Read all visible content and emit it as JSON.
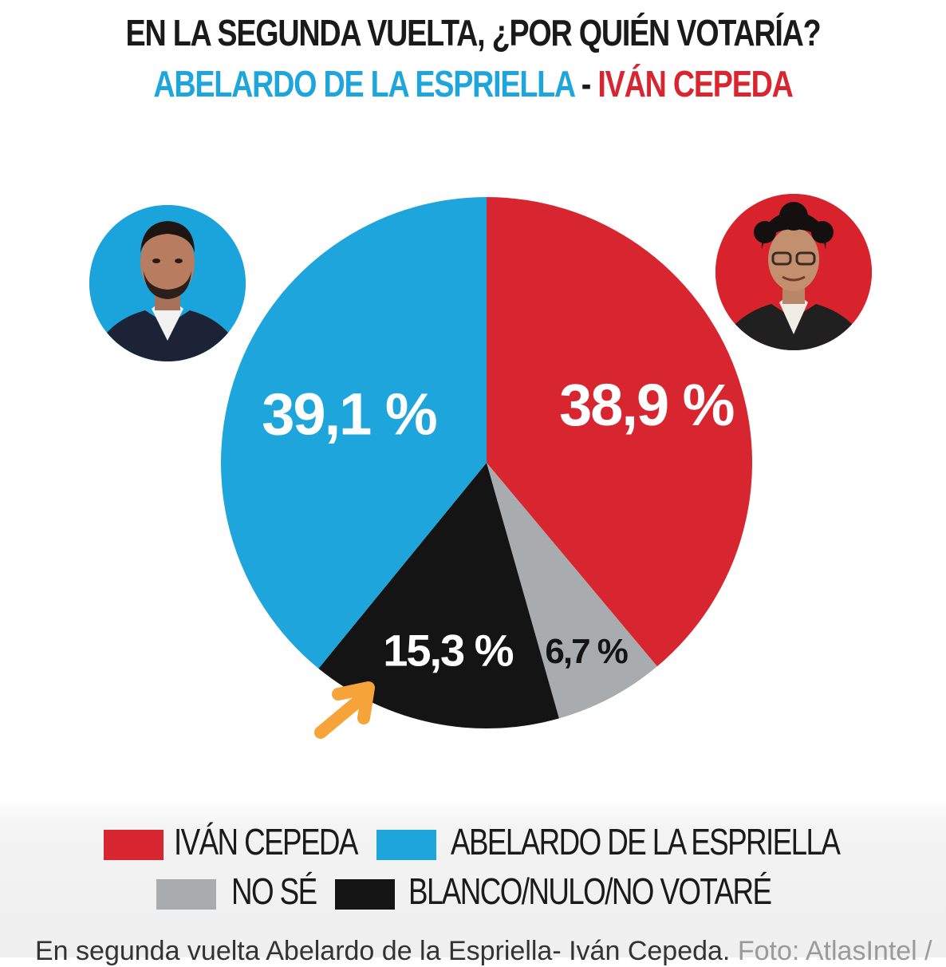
{
  "header": {
    "title": "EN LA SEGUNDA VUELTA, ¿POR QUIÉN VOTARÍA?",
    "subtitle_left": "ABELARDO DE LA ESPRIELLA",
    "subtitle_dash": " - ",
    "subtitle_right": "IVÁN CEPEDA"
  },
  "colors": {
    "blue": "#1ea6dc",
    "red": "#d7262f",
    "gray": "#a9acae",
    "black": "#141414",
    "arrow": "#f6a43a"
  },
  "chart_data": {
    "type": "pie",
    "title": "EN LA SEGUNDA VUELTA, ¿POR QUIÉN VOTARÍA?",
    "slices": [
      {
        "name": "IVÁN CEPEDA",
        "value": 38.9,
        "label": "38,9 %",
        "color": "#d7262f"
      },
      {
        "name": "NO SÉ",
        "value": 6.7,
        "label": "6,7 %",
        "color": "#a9acae"
      },
      {
        "name": "BLANCO/NULO/NO VOTARÉ",
        "value": 15.3,
        "label": "15,3 %",
        "color": "#141414"
      },
      {
        "name": "ABELARDO DE LA ESPRIELLA",
        "value": 39.1,
        "label": "39,1 %",
        "color": "#1ea6dc"
      }
    ],
    "legend_placement": "bottom"
  },
  "legend": {
    "items": [
      {
        "label": "IVÁN CEPEDA",
        "color": "#d7262f"
      },
      {
        "label": "ABELARDO DE LA ESPRIELLA",
        "color": "#1ea6dc"
      },
      {
        "label": "NO SÉ",
        "color": "#a9acae"
      },
      {
        "label": "BLANCO/NULO/NO VOTARÉ",
        "color": "#141414"
      }
    ]
  },
  "caption": {
    "text": "En segunda vuelta Abelardo de la Espriella- Iván Cepeda.",
    "credit": "Foto: AtlasIntel /"
  }
}
